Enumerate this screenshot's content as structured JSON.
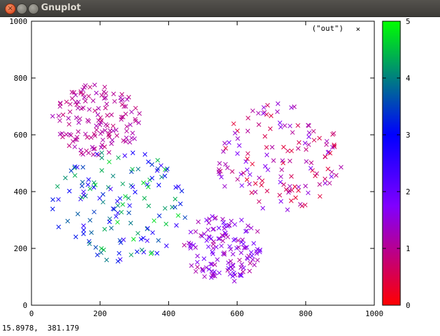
{
  "window": {
    "title": "Gnuplot"
  },
  "status": {
    "coords": "15.8978,  381.179"
  },
  "chart_data": {
    "type": "scatter",
    "title": "",
    "xlabel": "",
    "ylabel": "",
    "xlim": [
      0,
      1000
    ],
    "ylim": [
      0,
      1000
    ],
    "xticks": [
      "0",
      "200",
      "400",
      "600",
      "800",
      "1000"
    ],
    "yticks": [
      "0",
      "200",
      "400",
      "600",
      "800",
      "1000"
    ],
    "legend": {
      "label": "(\"out\")",
      "marker": "x",
      "placement": "top-right"
    },
    "colorbar": {
      "range": [
        0,
        5
      ],
      "ticks": [
        "0",
        "1",
        "2",
        "3",
        "4",
        "5"
      ],
      "colors": [
        "#ff0000",
        "#8000ff",
        "#0000ff",
        "#00ff00"
      ]
    },
    "clusters": [
      {
        "center": [
          560,
          200
        ],
        "radius": 120,
        "cvalue": [
          1,
          2
        ]
      },
      {
        "center": [
          190,
          650
        ],
        "radius": 130,
        "cvalue": [
          0.8,
          1.3
        ]
      },
      {
        "center": [
          720,
          520
        ],
        "radius": 190,
        "cvalue": [
          0.3,
          1.8
        ]
      },
      {
        "center": [
          260,
          350
        ],
        "radius": 200,
        "cvalue": [
          2.3,
          4.8
        ]
      }
    ]
  }
}
